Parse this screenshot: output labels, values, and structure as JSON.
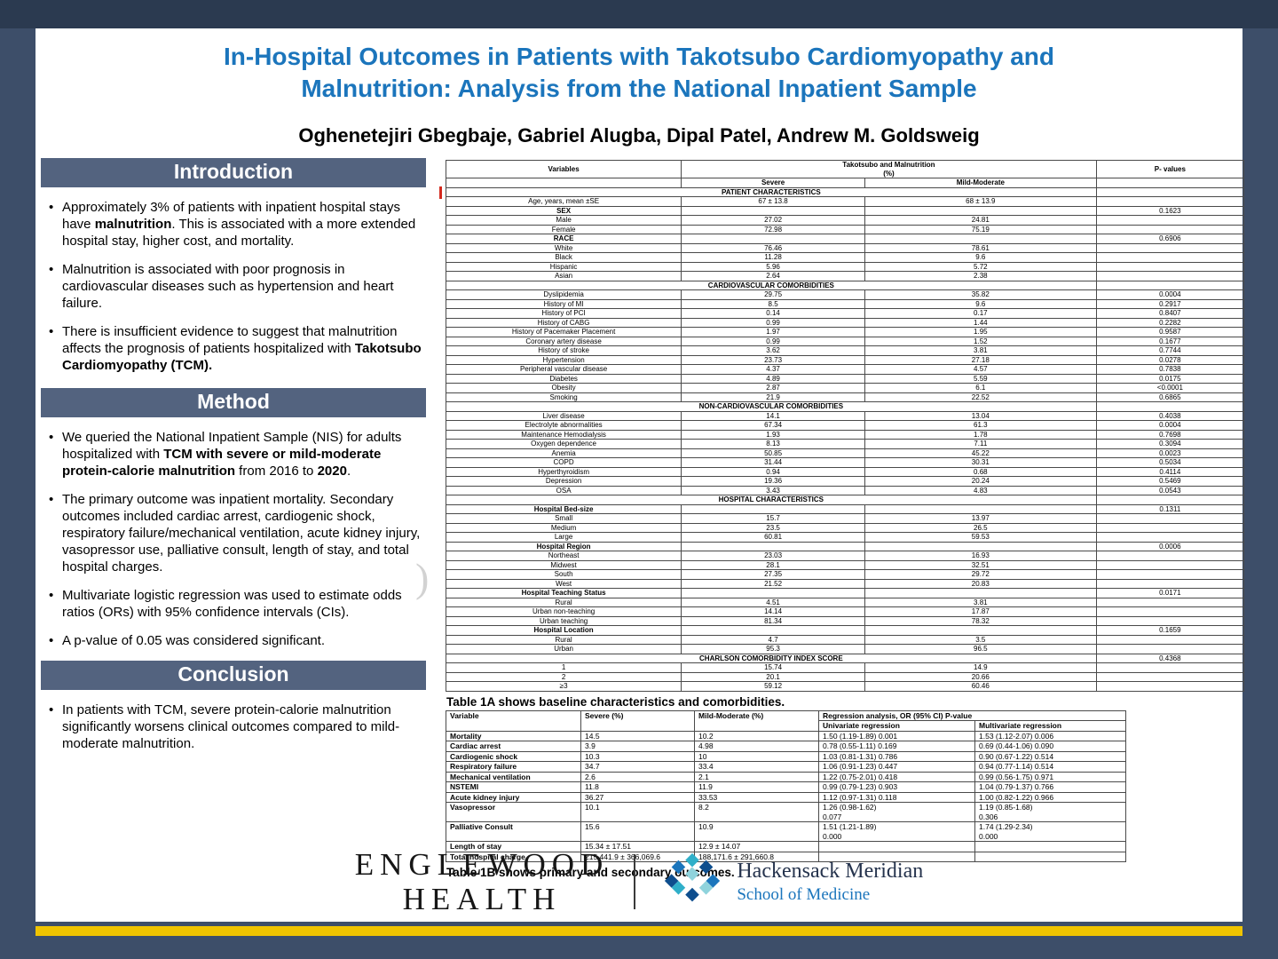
{
  "colors": {
    "frame": "#3D4E69",
    "frame_top": "#2B3A50",
    "accent_yellow": "#F0C400",
    "title_blue": "#1B75BC",
    "section_bar": "#53637F",
    "highlight_red": "#E8251A"
  },
  "title": {
    "line1": "In-Hospital Outcomes in Patients with Takotsubo Cardiomyopathy and",
    "line2": "Malnutrition: Analysis from the National Inpatient Sample"
  },
  "authors": "Oghenetejiri Gbegbaje, Gabriel Alugba, Dipal Patel, Andrew M. Goldsweig",
  "introduction": {
    "heading": "Introduction",
    "bullets": [
      [
        {
          "t": "Approximately 3% of patients with inpatient hospital stays have "
        },
        {
          "t": "malnutrition",
          "b": true
        },
        {
          "t": ". This is associated with a more extended hospital stay, higher cost, and mortality."
        }
      ],
      [
        {
          "t": "Malnutrition is associated with poor prognosis in cardiovascular diseases such as hypertension and heart failure."
        }
      ],
      [
        {
          "t": "There is insufficient evidence to suggest that malnutrition affects the prognosis of patients hospitalized with "
        },
        {
          "t": "Takotsubo Cardiomyopathy (TCM).",
          "b": true
        }
      ]
    ]
  },
  "method": {
    "heading": "Method",
    "bullets": [
      [
        {
          "t": "We queried the National Inpatient Sample (NIS) for adults hospitalized with "
        },
        {
          "t": "TCM with severe or mild-moderate protein-calorie malnutrition",
          "b": true
        },
        {
          "t": " from 2016 to "
        },
        {
          "t": "2020",
          "b": true
        },
        {
          "t": "."
        }
      ],
      [
        {
          "t": "The primary outcome was inpatient mortality. Secondary outcomes included cardiac arrest, cardiogenic shock, respiratory failure/mechanical ventilation, acute kidney injury, vasopressor use, palliative consult, length of stay, and total hospital charges."
        }
      ],
      [
        {
          "t": "Multivariate logistic regression was used to estimate odds ratios (ORs) with 95% confidence intervals (CIs)."
        }
      ],
      [
        {
          "t": "A p-value of 0.05 was considered significant."
        }
      ]
    ]
  },
  "conclusion": {
    "heading": "Conclusion",
    "bullets": [
      [
        {
          "t": "In patients with TCM, severe protein-calorie malnutrition significantly worsens clinical outcomes compared to mild-moderate malnutrition."
        }
      ]
    ]
  },
  "watermark_glyph": ")",
  "table1a": {
    "header": {
      "variables": "Variables",
      "group": "Takotsubo and Malnutrition\n(%)",
      "severe": "Severe",
      "mild": "Mild-Moderate",
      "p": "P- values"
    },
    "rows": [
      {
        "type": "section",
        "label": "PATIENT CHARACTERISTICS",
        "p": ""
      },
      {
        "type": "data",
        "label": "Age, years, mean ±SE",
        "severe": "67 ± 13.8",
        "mild": "68 ± 13.9",
        "p": ""
      },
      {
        "type": "data",
        "label": "SEX",
        "bold": true,
        "severe": "",
        "mild": "",
        "p": "0.1623"
      },
      {
        "type": "data",
        "label": "Male",
        "severe": "27.02",
        "mild": "24.81",
        "p": ""
      },
      {
        "type": "data",
        "label": "Female",
        "severe": "72.98",
        "mild": "75.19",
        "p": ""
      },
      {
        "type": "data",
        "label": "RACE",
        "bold": true,
        "severe": "",
        "mild": "",
        "p": "0.6906"
      },
      {
        "type": "data",
        "label": "White",
        "severe": "76.46",
        "mild": "78.61",
        "p": ""
      },
      {
        "type": "data",
        "label": "Black",
        "severe": "11.28",
        "mild": "9.6",
        "p": ""
      },
      {
        "type": "data",
        "label": "Hispanic",
        "severe": "5.96",
        "mild": "5.72",
        "p": ""
      },
      {
        "type": "data",
        "label": "Asian",
        "severe": "2.64",
        "mild": "2.38",
        "p": ""
      },
      {
        "type": "section",
        "label": "CARDIOVASCULAR COMORBIDITIES",
        "p": ""
      },
      {
        "type": "data",
        "label": "Dyslipidemia",
        "severe": "29.75",
        "mild": "35.82",
        "p": "0.0004"
      },
      {
        "type": "data",
        "label": "History of MI",
        "severe": "8.5",
        "mild": "9.6",
        "p": "0.2917"
      },
      {
        "type": "data",
        "label": "History of PCI",
        "severe": "0.14",
        "mild": "0.17",
        "p": "0.8407"
      },
      {
        "type": "data",
        "label": "History of CABG",
        "severe": "0.99",
        "mild": "1.44",
        "p": "0.2282"
      },
      {
        "type": "data",
        "label": "History of Pacemaker Placement",
        "severe": "1.97",
        "mild": "1.95",
        "p": "0.9587"
      },
      {
        "type": "data",
        "label": "Coronary artery disease",
        "severe": "0.99",
        "mild": "1.52",
        "p": "0.1677"
      },
      {
        "type": "data",
        "label": "History of stroke",
        "severe": "3.62",
        "mild": "3.81",
        "p": "0.7744"
      },
      {
        "type": "data",
        "label": "Hypertension",
        "severe": "23.73",
        "mild": "27.18",
        "p": "0.0278"
      },
      {
        "type": "data",
        "label": "Peripheral vascular disease",
        "severe": "4.37",
        "mild": "4.57",
        "p": "0.7838"
      },
      {
        "type": "data",
        "label": "Diabetes",
        "severe": "4.89",
        "mild": "5.59",
        "p": "0.0175"
      },
      {
        "type": "data",
        "label": "Obesity",
        "severe": "2.87",
        "mild": "6.1",
        "p": "<0.0001"
      },
      {
        "type": "data",
        "label": "Smoking",
        "severe": "21.9",
        "mild": "22.52",
        "p": "0.6865"
      },
      {
        "type": "section",
        "label": "NON-CARDIOVASCULAR COMORBIDITIES",
        "p": ""
      },
      {
        "type": "data",
        "label": "Liver disease",
        "severe": "14.1",
        "mild": "13.04",
        "p": "0.4038"
      },
      {
        "type": "data",
        "label": "Electrolyte abnormalities",
        "severe": "67.34",
        "mild": "61.3",
        "p": "0.0004"
      },
      {
        "type": "data",
        "label": "Maintenance Hemodialysis",
        "severe": "1.93",
        "mild": "1.78",
        "p": "0.7698"
      },
      {
        "type": "data",
        "label": "Oxygen dependence",
        "severe": "8.13",
        "mild": "7.11",
        "p": "0.3094"
      },
      {
        "type": "data",
        "label": "Anemia",
        "severe": "50.85",
        "mild": "45.22",
        "p": "0.0023"
      },
      {
        "type": "data",
        "label": "COPD",
        "severe": "31.44",
        "mild": "30.31",
        "p": "0.5034"
      },
      {
        "type": "data",
        "label": "Hyperthyroidism",
        "severe": "0.94",
        "mild": "0.68",
        "p": "0.4114"
      },
      {
        "type": "data",
        "label": "Depression",
        "severe": "19.36",
        "mild": "20.24",
        "p": "0.5469"
      },
      {
        "type": "data",
        "label": "OSA",
        "severe": "3.43",
        "mild": "4.83",
        "p": "0.0543"
      },
      {
        "type": "section",
        "label": "HOSPITAL CHARACTERISTICS",
        "p": ""
      },
      {
        "type": "data",
        "label": "Hospital Bed-size",
        "bold": true,
        "severe": "",
        "mild": "",
        "p": "0.1311"
      },
      {
        "type": "data",
        "label": "Small",
        "severe": "15.7",
        "mild": "13.97",
        "p": ""
      },
      {
        "type": "data",
        "label": "Medium",
        "severe": "23.5",
        "mild": "26.5",
        "p": ""
      },
      {
        "type": "data",
        "label": "Large",
        "severe": "60.81",
        "mild": "59.53",
        "p": ""
      },
      {
        "type": "data",
        "label": "Hospital Region",
        "bold": true,
        "severe": "",
        "mild": "",
        "p": "0.0006"
      },
      {
        "type": "data",
        "label": "Northeast",
        "severe": "23.03",
        "mild": "16.93",
        "p": ""
      },
      {
        "type": "data",
        "label": "Midwest",
        "severe": "28.1",
        "mild": "32.51",
        "p": ""
      },
      {
        "type": "data",
        "label": "South",
        "severe": "27.35",
        "mild": "29.72",
        "p": ""
      },
      {
        "type": "data",
        "label": "West",
        "severe": "21.52",
        "mild": "20.83",
        "p": ""
      },
      {
        "type": "data",
        "label": "Hospital Teaching Status",
        "bold": true,
        "severe": "",
        "mild": "",
        "p": "0.0171"
      },
      {
        "type": "data",
        "label": "Rural",
        "severe": "4.51",
        "mild": "3.81",
        "p": ""
      },
      {
        "type": "data",
        "label": "Urban non-teaching",
        "severe": "14.14",
        "mild": "17.87",
        "p": ""
      },
      {
        "type": "data",
        "label": "Urban teaching",
        "severe": "81.34",
        "mild": "78.32",
        "p": ""
      },
      {
        "type": "data",
        "label": "Hospital Location",
        "bold": true,
        "severe": "",
        "mild": "",
        "p": "0.1659"
      },
      {
        "type": "data",
        "label": "Rural",
        "severe": "4.7",
        "mild": "3.5",
        "p": ""
      },
      {
        "type": "data",
        "label": "Urban",
        "severe": "95.3",
        "mild": "96.5",
        "p": ""
      },
      {
        "type": "section",
        "label": "CHARLSON COMORBIDITY INDEX SCORE",
        "p": "0.4368"
      },
      {
        "type": "data",
        "label": "1",
        "severe": "15.74",
        "mild": "14.9",
        "p": ""
      },
      {
        "type": "data",
        "label": "2",
        "severe": "20.1",
        "mild": "20.66",
        "p": ""
      },
      {
        "type": "data",
        "label": "≥3",
        "severe": "59.12",
        "mild": "60.46",
        "p": ""
      }
    ],
    "caption": "Table 1A shows baseline characteristics and comorbidities."
  },
  "table1b": {
    "header": {
      "variable": "Variable",
      "severe": "Severe (%)",
      "mild": "Mild-Moderate (%)",
      "group": "Regression analysis, OR (95% CI) P-value",
      "uni": "Univariate regression",
      "multi": "Multivariate regression"
    },
    "rows": [
      {
        "label": "Mortality",
        "severe": "14.5",
        "mild": "10.2",
        "uni": "1.50 (1.19-1.89) 0.001",
        "multi": "1.53 (1.12-2.07) 0.006",
        "red": [
          "severe",
          "mild",
          "uni",
          "multi"
        ]
      },
      {
        "label": "Cardiac arrest",
        "severe": "3.9",
        "mild": "4.98",
        "uni": "0.78 (0.55-1.11) 0.169",
        "multi": "0.69 (0.44-1.06) 0.090"
      },
      {
        "label": "Cardiogenic shock",
        "severe": "10.3",
        "mild": "10",
        "uni": "1.03 (0.81-1.31) 0.786",
        "multi": "0.90 (0.67-1.22) 0.514"
      },
      {
        "label": "Respiratory failure",
        "severe": "34.7",
        "mild": "33.4",
        "uni": "1.06 (0.91-1.23) 0.447",
        "multi": "0.94 (0.77-1.14) 0.514"
      },
      {
        "label": "Mechanical ventilation",
        "severe": "2.6",
        "mild": "2.1",
        "uni": "1.22 (0.75-2.01) 0.418",
        "multi": "0.99 (0.56-1.75) 0.971"
      },
      {
        "label": "NSTEMI",
        "severe": "11.8",
        "mild": "11.9",
        "uni": "0.99 (0.79-1.23) 0.903",
        "multi": "1.04 (0.79-1.37) 0.766"
      },
      {
        "label": "Acute kidney injury",
        "severe": "36.27",
        "mild": "33.53",
        "uni": "1.12 (0.97-1.31) 0.118",
        "multi": "1.00 (0.82-1.22) 0.966"
      },
      {
        "label": "Vasopressor",
        "severe": "10.1",
        "mild": "8.2",
        "uni": "1.26 (0.98-1.62)\n0.077",
        "multi": "1.19 (0.85-1.68)\n0.306"
      },
      {
        "label": "Palliative Consult",
        "severe": "15.6",
        "mild": "10.9",
        "uni": "1.51 (1.21-1.89)\n0.000",
        "multi": "1.74 (1.29-2.34)\n0.000",
        "red": [
          "severe",
          "mild",
          "uni",
          "multi"
        ]
      },
      {
        "label": "Length of stay",
        "severe": "15.34 ± 17.51",
        "mild": "12.9 ± 14.07",
        "uni": "",
        "multi": ""
      },
      {
        "label": "Total hospital charge",
        "severe": "215,441.9 ± 366,069.6",
        "mild": "188,171.6 ± 291,660.8",
        "uni": "",
        "multi": ""
      }
    ],
    "caption": "Table 1B shows primary and secondary outcomes."
  },
  "footer": {
    "englewood_line1": "ENGLEWOOD",
    "englewood_line2": "HEALTH",
    "hm_name": "Hackensack Meridian",
    "hm_school": "School of Medicine"
  }
}
